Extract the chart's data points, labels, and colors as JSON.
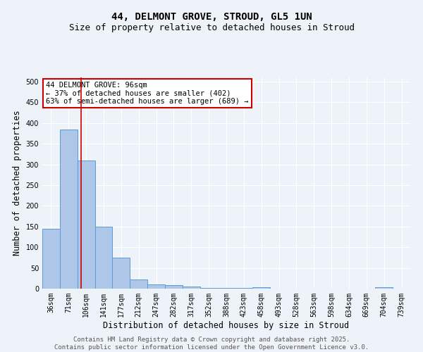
{
  "title": "44, DELMONT GROVE, STROUD, GL5 1UN",
  "subtitle": "Size of property relative to detached houses in Stroud",
  "xlabel": "Distribution of detached houses by size in Stroud",
  "ylabel": "Number of detached properties",
  "categories": [
    "36sqm",
    "71sqm",
    "106sqm",
    "141sqm",
    "177sqm",
    "212sqm",
    "247sqm",
    "282sqm",
    "317sqm",
    "352sqm",
    "388sqm",
    "423sqm",
    "458sqm",
    "493sqm",
    "528sqm",
    "563sqm",
    "598sqm",
    "634sqm",
    "669sqm",
    "704sqm",
    "739sqm"
  ],
  "values": [
    145,
    385,
    310,
    150,
    75,
    22,
    10,
    8,
    5,
    2,
    1,
    1,
    3,
    0,
    0,
    0,
    0,
    0,
    0,
    4,
    0
  ],
  "bar_color": "#aec6e8",
  "bar_edge_color": "#5b9bd5",
  "vline_x": 1.72,
  "vline_color": "#cc0000",
  "annotation_text": "44 DELMONT GROVE: 96sqm\n← 37% of detached houses are smaller (402)\n63% of semi-detached houses are larger (689) →",
  "annotation_box_color": "#ffffff",
  "annotation_box_edge": "#cc0000",
  "ylim": [
    0,
    510
  ],
  "yticks": [
    0,
    50,
    100,
    150,
    200,
    250,
    300,
    350,
    400,
    450,
    500
  ],
  "bg_color": "#eef2f9",
  "footer_line1": "Contains HM Land Registry data © Crown copyright and database right 2025.",
  "footer_line2": "Contains public sector information licensed under the Open Government Licence v3.0.",
  "title_fontsize": 10,
  "subtitle_fontsize": 9,
  "axis_label_fontsize": 8.5,
  "tick_fontsize": 7,
  "annotation_fontsize": 7.5,
  "footer_fontsize": 6.5
}
